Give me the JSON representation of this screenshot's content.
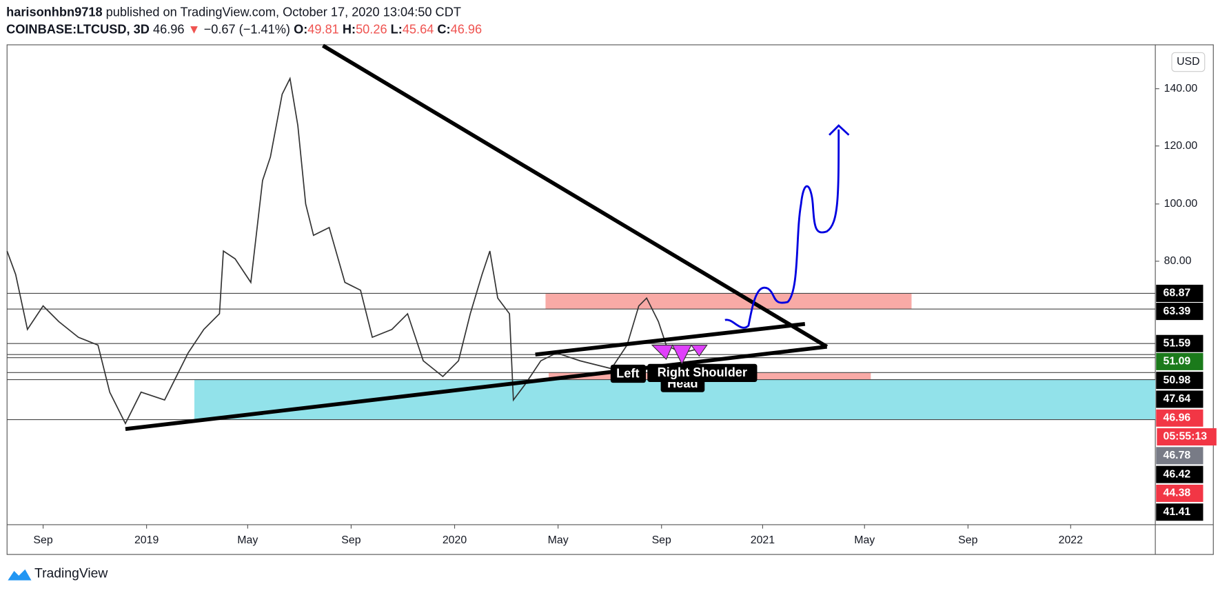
{
  "header": {
    "author": "harisonhbn9718",
    "published": "published on TradingView.com, October 17, 2020 13:04:50 CDT",
    "symbol": "COINBASE:LTCUSD, 3D",
    "price": "46.96",
    "change": "−0.67 (−1.41%)",
    "open_label": "O:",
    "open": "49.81",
    "high_label": "H:",
    "high": "50.26",
    "low_label": "L:",
    "low": "45.64",
    "close_label": "C:",
    "close": "46.96"
  },
  "currency": "USD",
  "price_axis": [
    "140.00",
    "120.00",
    "100.00",
    "80.00"
  ],
  "price_tags": [
    "68.87",
    "63.39",
    "51.59",
    "51.09",
    "50.98",
    "47.64",
    "46.96",
    "05:55:13",
    "46.78",
    "46.42",
    "44.38",
    "41.41"
  ],
  "time_axis": [
    "Sep",
    "2019",
    "May",
    "Sep",
    "2020",
    "May",
    "Sep",
    "2021",
    "May",
    "Sep",
    "2022"
  ],
  "annotations": [
    "Left",
    "Right Shoulder",
    "Head"
  ],
  "footer": "TradingView"
}
